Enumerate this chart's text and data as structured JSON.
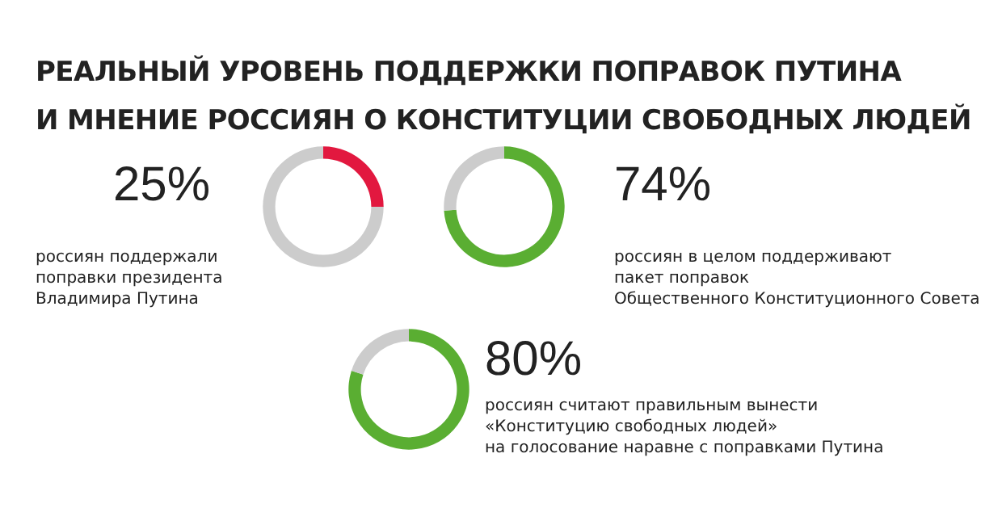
{
  "chart_data": [
    {
      "type": "donut",
      "title": "РЕАЛЬНЫЙ УРОВЕНЬ ПОДДЕРЖКИ ПОПРАВОК ПУТИНА\nИ МНЕНИЕ РОССИЯН О КОНСТИТУЦИИ СВОБОДНЫХ ЛЮДЕЙ",
      "categories": [
        null,
        null
      ],
      "values": [
        25,
        75
      ],
      "colors": [
        "#e2183f",
        "#cccccc"
      ],
      "annotations": [
        "25%",
        "россиян поддержали\nпоправки президента\nВладимира Путина"
      ]
    },
    {
      "type": "donut",
      "categories": [
        null,
        null
      ],
      "values": [
        74,
        26
      ],
      "colors": [
        "#5aae32",
        "#cccccc"
      ],
      "annotations": [
        "74%",
        "россиян в целом поддерживают\nпакет поправок\nОбщественного Конституционного Совета"
      ]
    },
    {
      "type": "donut",
      "categories": [
        null,
        null
      ],
      "values": [
        80,
        20
      ],
      "colors": [
        "#5aae32",
        "#cccccc"
      ],
      "annotations": [
        "80%",
        "россиян считают правильным вынести\n«Конституцию свободных людей»\nна голосование наравне с поправками Путина"
      ]
    }
  ]
}
